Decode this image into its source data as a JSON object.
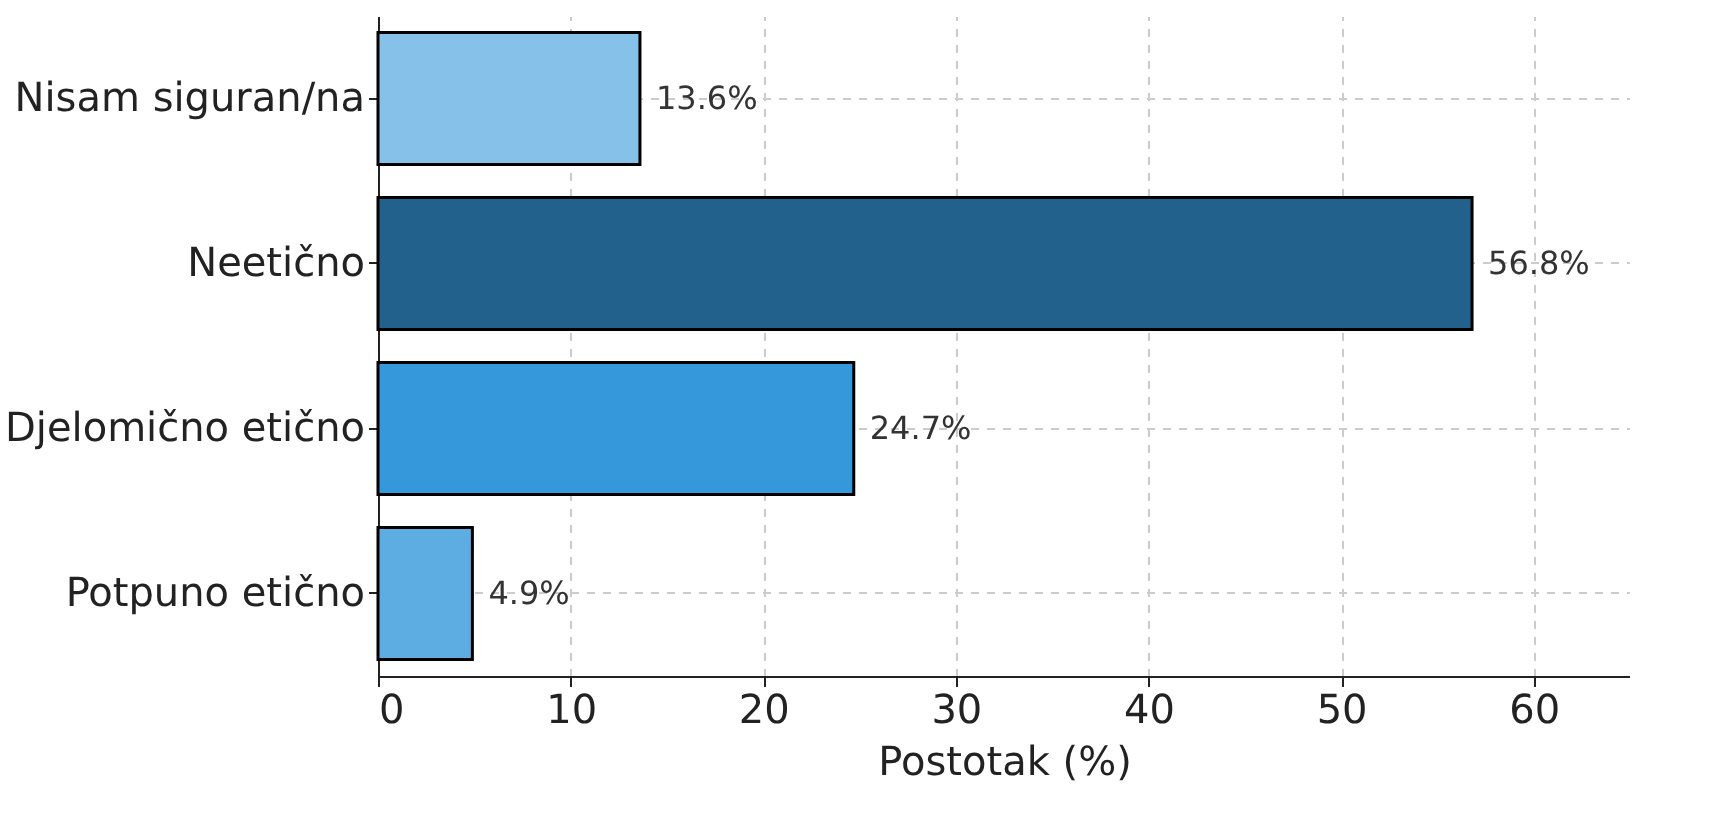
{
  "chart_data": {
    "type": "bar",
    "orientation": "horizontal",
    "xlabel": "Postotak (%)",
    "categories": [
      "Nisam siguran/na",
      "Neetično",
      "Djelomično etično",
      "Potpuno etično"
    ],
    "values": [
      13.6,
      56.8,
      24.7,
      4.9
    ],
    "colors": [
      "#85c1e9",
      "#21618c",
      "#3498db",
      "#5dade2"
    ],
    "value_labels": [
      "13.6%",
      "56.8%",
      "24.7%",
      "4.9%"
    ],
    "xlim": [
      0,
      65
    ],
    "xticks": [
      0,
      10,
      20,
      30,
      40,
      50,
      60
    ],
    "grid": true
  }
}
